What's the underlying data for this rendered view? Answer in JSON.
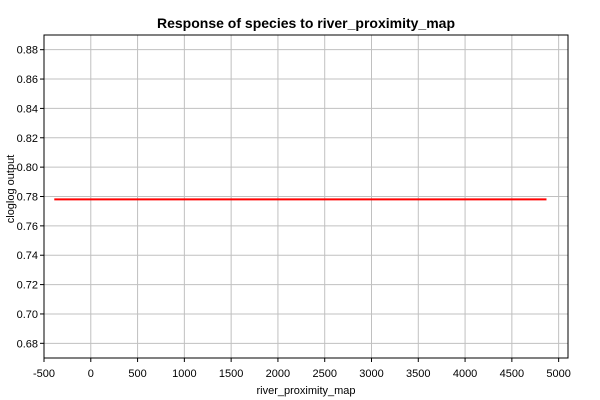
{
  "chart_data": {
    "type": "line",
    "title": "Response of species to river_proximity_map",
    "xlabel": "river_proximity_map",
    "ylabel": "cloglog output",
    "xlim": [
      -500,
      5100
    ],
    "ylim": [
      0.67,
      0.89
    ],
    "x_ticks": [
      -500,
      0,
      500,
      1000,
      1500,
      2000,
      2500,
      3000,
      3500,
      4000,
      4500,
      5000
    ],
    "y_ticks": [
      0.68,
      0.7,
      0.72,
      0.74,
      0.76,
      0.78,
      0.8,
      0.82,
      0.84,
      0.86,
      0.88
    ],
    "x_tick_labels": [
      "-500",
      "0",
      "500",
      "1000",
      "1500",
      "2000",
      "2500",
      "3000",
      "3500",
      "4000",
      "4500",
      "5000"
    ],
    "y_tick_labels": [
      "0.68",
      "0.70",
      "0.72",
      "0.74",
      "0.76",
      "0.78",
      "0.80",
      "0.82",
      "0.84",
      "0.86",
      "0.88"
    ],
    "grid": true,
    "series": [
      {
        "color": "#ff0000",
        "x": [
          -390,
          4870
        ],
        "y": [
          0.778,
          0.778
        ]
      }
    ]
  }
}
